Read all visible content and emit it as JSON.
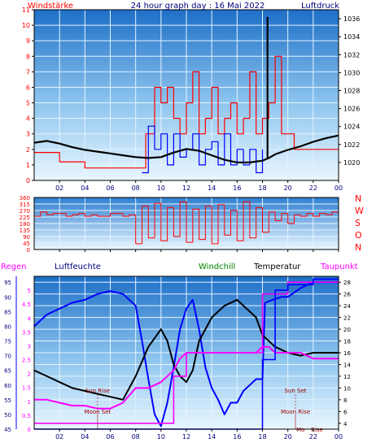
{
  "colors": {
    "grid": "#e4f3ff",
    "red": "#ff0000",
    "blue": "#0000ff",
    "black": "#000000",
    "navy": "#000080",
    "magenta": "#ff00ff",
    "green": "#008000",
    "darkred": "#a00000"
  },
  "chart_data": [
    {
      "type": "line",
      "title": "24 hour graph day : 16 Mai 2022",
      "left_label": "Windstärke",
      "right_label": "Luftdruck",
      "xticks": [
        "02",
        "04",
        "06",
        "08",
        "10",
        "12",
        "14",
        "16",
        "18",
        "20",
        "22",
        "00"
      ],
      "ylim_left": [
        0,
        11
      ],
      "yticks_left": [
        "0",
        "1",
        "2",
        "3",
        "4",
        "5",
        "6",
        "7",
        "8",
        "9",
        "10",
        "11"
      ],
      "ylim_right": [
        1018,
        1037
      ],
      "yticks_right": [
        "1020",
        "1022",
        "1024",
        "1026",
        "1028",
        "1030",
        "1032",
        "1034",
        "1036"
      ],
      "series": [
        {
          "color": "red",
          "axis": "left",
          "x": [
            0,
            2,
            4,
            6,
            8,
            8.8,
            9.5,
            10,
            10.5,
            11,
            11.5,
            12,
            12.5,
            13,
            13.5,
            14,
            14.5,
            15,
            15.5,
            16,
            16.5,
            17,
            17.5,
            18,
            18.5,
            19,
            19.5,
            20,
            20.5,
            21,
            21.5,
            22,
            22.5,
            23,
            24
          ],
          "y": [
            1.8,
            1.2,
            0.8,
            0.8,
            0.8,
            3,
            6,
            5,
            6,
            4,
            3,
            5,
            7,
            3,
            4,
            6,
            3,
            4,
            5,
            3,
            4,
            7,
            3,
            4,
            5,
            8,
            3,
            3,
            2,
            2,
            2,
            2,
            2,
            2,
            2
          ]
        },
        {
          "color": "red",
          "axis": "left",
          "name": "",
          "x": [
            17.6
          ],
          "y": [
            11
          ]
        },
        {
          "color": "blue",
          "axis": "left",
          "x": [
            8.5,
            9,
            9.5,
            10,
            10.5,
            11,
            11.5,
            12,
            12.5,
            13,
            13.5,
            14,
            14.5,
            15,
            15.5,
            16,
            16.5,
            17,
            17.5,
            18
          ],
          "y": [
            0.5,
            3.5,
            2,
            3,
            1,
            3,
            1.5,
            2,
            3,
            1,
            2,
            2.5,
            1,
            3,
            1,
            2,
            1,
            2,
            0.5,
            2
          ]
        },
        {
          "color": "black",
          "axis": "right",
          "x": [
            0,
            1,
            2,
            3,
            4,
            5,
            6,
            7,
            8,
            9,
            10,
            11,
            12,
            13,
            14,
            15,
            16,
            17,
            18,
            18.5,
            19,
            20,
            21,
            22,
            23,
            24
          ],
          "y": [
            1022.2,
            1022.4,
            1022.1,
            1021.7,
            1021.4,
            1021.2,
            1021.0,
            1020.8,
            1020.6,
            1020.5,
            1020.6,
            1021.1,
            1021.5,
            1021.3,
            1020.8,
            1020.3,
            1020.0,
            1020.0,
            1020.2,
            1020.5,
            1020.9,
            1021.4,
            1021.8,
            1022.3,
            1022.7,
            1023.0
          ]
        },
        {
          "color": "black",
          "axis": "right",
          "name": "",
          "x": [
            18.4,
            18.4
          ],
          "y": [
            1020.5,
            1036.2
          ]
        }
      ]
    },
    {
      "type": "line",
      "title": "",
      "ylim": [
        0,
        360
      ],
      "yticks": [
        "0",
        "45",
        "90",
        "135",
        "180",
        "225",
        "270",
        "315",
        "360"
      ],
      "right_labels": [
        "N",
        "W",
        "S",
        "O",
        "N"
      ],
      "series": [
        {
          "color": "red",
          "x": [
            0,
            0.5,
            1,
            1.5,
            2,
            2.5,
            3,
            3.5,
            4,
            4.5,
            5,
            5.5,
            6,
            6.5,
            7,
            7.5,
            8,
            8.5,
            9,
            9.5,
            10,
            10.5,
            11,
            11.5,
            12,
            12.5,
            13,
            13.5,
            14,
            14.5,
            15,
            15.5,
            16,
            16.5,
            17,
            17.5,
            18,
            18.5,
            19,
            19.5,
            20,
            20.5,
            21,
            21.5,
            22,
            22.5,
            23,
            23.5,
            24
          ],
          "y": [
            230,
            260,
            240,
            250,
            250,
            230,
            240,
            250,
            230,
            240,
            230,
            230,
            250,
            250,
            230,
            240,
            40,
            300,
            80,
            320,
            60,
            290,
            90,
            330,
            50,
            280,
            70,
            300,
            40,
            310,
            100,
            270,
            60,
            330,
            80,
            290,
            120,
            260,
            200,
            250,
            180,
            240,
            230,
            250,
            230,
            250,
            240,
            260,
            300
          ]
        }
      ]
    },
    {
      "type": "line",
      "title": "",
      "labels": {
        "regen": "Regen",
        "luftfeuchte": "Luftfeuchte",
        "windchill": "Windchill",
        "temperatur": "Temperatur",
        "taupunkt": "Taupunkt"
      },
      "xticks": [
        "02",
        "04",
        "06",
        "08",
        "10",
        "12",
        "14",
        "16",
        "18",
        "20",
        "22",
        "00"
      ],
      "ylim_regen": [
        0,
        5.5
      ],
      "yticks_regen": [
        "0",
        "0.5",
        "1",
        "1.5",
        "2",
        "2.5",
        "3",
        "3.5",
        "4",
        "4.5",
        "5"
      ],
      "ylim_hum": [
        45,
        97
      ],
      "yticks_hum": [
        "45",
        "50",
        "55",
        "60",
        "65",
        "70",
        "75",
        "80",
        "85",
        "90",
        "95"
      ],
      "ylim_temp": [
        3,
        29
      ],
      "yticks_temp": [
        "4",
        "6",
        "8",
        "10",
        "12",
        "14",
        "16",
        "18",
        "20",
        "22",
        "24",
        "26",
        "28"
      ],
      "annotations": [
        {
          "text": "Sun Rise",
          "x": 5.0,
          "y": 9.2
        },
        {
          "text": "Moon Set",
          "x": 5.0,
          "y": 5.6
        },
        {
          "text": "Sun Set",
          "x": 20.6,
          "y": 9.2
        },
        {
          "text": "Moon Rise",
          "x": 20.6,
          "y": 5.6
        },
        {
          "text": "Mo",
          "x": 21.0,
          "y": 2.6
        },
        {
          "text": "Rise",
          "x": 22.3,
          "y": 2.6
        }
      ],
      "series": [
        {
          "color": "blue",
          "axis": "hum",
          "x": [
            0,
            1,
            2,
            3,
            4,
            5,
            6,
            7,
            8,
            8.5,
            9,
            9.5,
            10,
            10.5,
            11,
            11.5,
            12,
            12.5,
            13,
            13.5,
            14,
            14.5,
            15,
            15.5,
            16,
            16.5,
            17,
            17.5,
            18,
            18.2,
            18.8,
            19.5,
            20,
            21,
            22,
            23,
            24
          ],
          "y": [
            80,
            84,
            86,
            88,
            89,
            91,
            92,
            91,
            87,
            75,
            62,
            50,
            46,
            54,
            66,
            79,
            86,
            89,
            79,
            66,
            59,
            55,
            50,
            54,
            54,
            58,
            60,
            62,
            62,
            88,
            89,
            90,
            90,
            93,
            95,
            95,
            95
          ]
        },
        {
          "color": "black",
          "axis": "temp",
          "x": [
            0,
            1,
            2,
            3,
            4,
            5,
            6,
            7,
            8,
            9,
            10,
            10.5,
            11,
            11.5,
            12,
            12.5,
            13,
            14,
            15,
            16,
            16.5,
            17,
            17.5,
            18,
            19,
            20,
            21,
            22,
            23,
            24
          ],
          "y": [
            13,
            12,
            11,
            10,
            9.5,
            9,
            8.5,
            8,
            12,
            17,
            20,
            18,
            14,
            12,
            11,
            13,
            18,
            22,
            24,
            25,
            24,
            23,
            22,
            19,
            17,
            16,
            15.5,
            16,
            16,
            16
          ]
        },
        {
          "color": "magenta",
          "axis": "temp",
          "x": [
            0,
            1,
            2,
            3,
            4,
            5,
            6,
            7,
            8,
            9,
            10,
            11,
            11.5,
            12,
            12.5,
            13,
            14,
            15,
            16,
            17,
            17.5,
            18,
            18.5,
            19,
            20,
            21,
            22,
            23,
            24
          ],
          "y": [
            8,
            8,
            7.5,
            7,
            7,
            6.5,
            6.5,
            7.5,
            10,
            10,
            11,
            13,
            15,
            16,
            16,
            16,
            16,
            16,
            16,
            16,
            16,
            17,
            17,
            16,
            16,
            16,
            15,
            15,
            15
          ]
        },
        {
          "color": "magenta",
          "axis": "temp",
          "name": "",
          "x": [
            0,
            11,
            11,
            12,
            12,
            18,
            18,
            20,
            20,
            24
          ],
          "y": [
            4,
            4,
            12,
            12,
            16,
            16,
            26,
            26,
            28,
            28
          ]
        },
        {
          "color": "blue",
          "axis": "regen",
          "name": "",
          "x": [
            0,
            18,
            18,
            19,
            19,
            20,
            20,
            22,
            22,
            24
          ],
          "y": [
            0,
            0,
            2.5,
            2.5,
            5,
            5,
            5.2,
            5.2,
            5.4,
            5.4
          ]
        }
      ]
    }
  ]
}
